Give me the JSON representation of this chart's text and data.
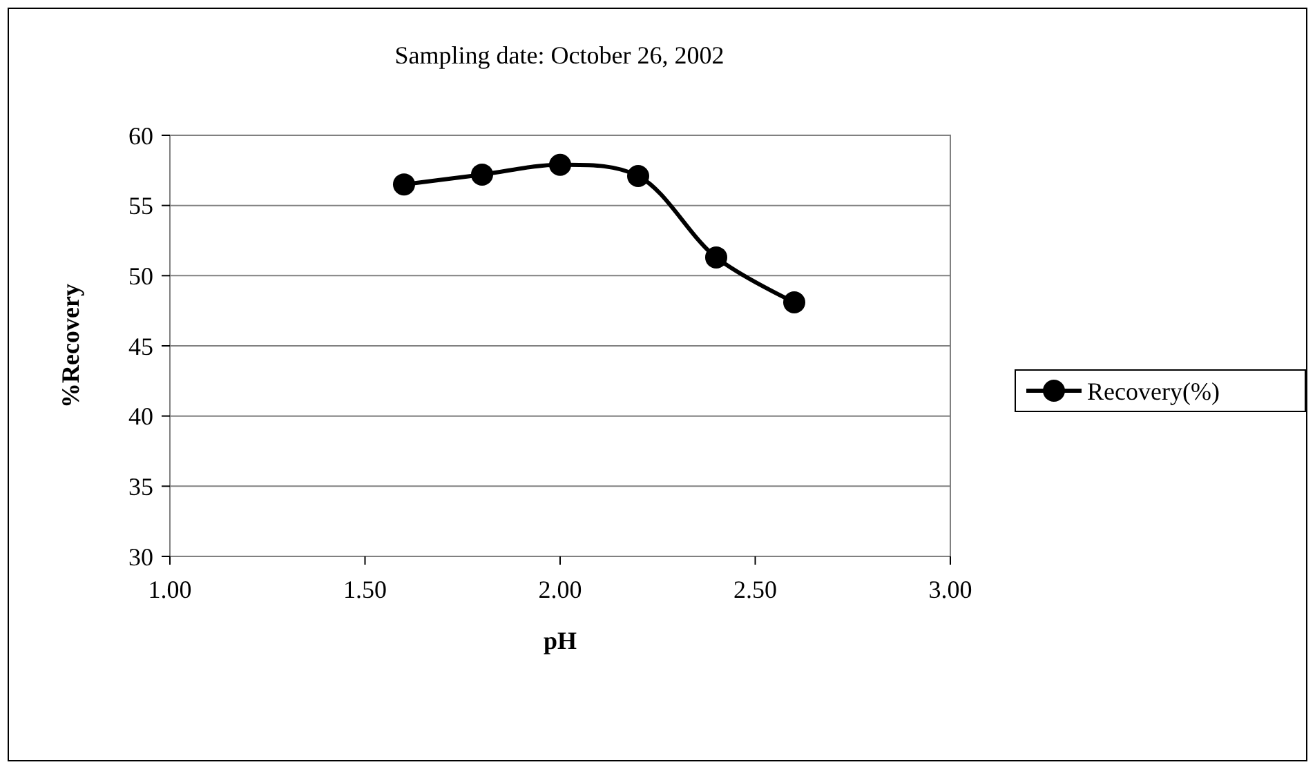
{
  "chart_data": {
    "type": "line",
    "title": "Sampling date: October 26, 2002",
    "xlabel": "pH",
    "ylabel": "%Recovery",
    "x": [
      1.6,
      1.8,
      2.0,
      2.2,
      2.4,
      2.6
    ],
    "series": [
      {
        "name": "Recovery(%)",
        "color": "#000000",
        "values": [
          56.5,
          57.2,
          57.9,
          57.1,
          51.3,
          48.1
        ]
      }
    ],
    "xlim": [
      1.0,
      3.0
    ],
    "xticks": [
      {
        "value": 1.0,
        "label": "1.00"
      },
      {
        "value": 1.5,
        "label": "1.50"
      },
      {
        "value": 2.0,
        "label": "2.00"
      },
      {
        "value": 2.5,
        "label": "2.50"
      },
      {
        "value": 3.0,
        "label": "3.00"
      }
    ],
    "ylim": [
      30,
      60
    ],
    "yticks": [
      30,
      35,
      40,
      45,
      50,
      55,
      60
    ],
    "grid": "y",
    "legend": "right",
    "marker": "circle",
    "line_style": "solid"
  }
}
